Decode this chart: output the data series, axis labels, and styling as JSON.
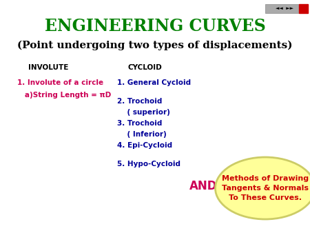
{
  "title1": "ENGINEERING CURVES",
  "title2": "(Point undergoing two types of displacements)",
  "title1_color": "#008000",
  "title2_color": "#000000",
  "bg_color": "#ffffff",
  "involute_header": "INVOLUTE",
  "cycloid_header": "CYCLOID",
  "header_color": "#000000",
  "involute_line1": "1. Involute of a circle",
  "involute_line2": "   a)String Length = πD",
  "cycloid_items": [
    "1. General Cycloid",
    "",
    "2. Trochoid",
    "    ( superior)",
    "3. Trochoid",
    "    ( Inferior)",
    "4. Epi-Cycloid",
    "",
    "5. Hypo-Cycloid"
  ],
  "items_color": "#000099",
  "involute_color": "#cc0055",
  "and_text": "AND",
  "and_color": "#cc0055",
  "ellipse_text": "Methods of Drawing\nTangents & Normals\nTo These Curves.",
  "ellipse_text_color": "#cc0000",
  "ellipse_bg": "#ffff99",
  "ellipse_edge": "#cccc66",
  "nav_bg": "#aaaaaa",
  "nav_red": "#cc0000"
}
